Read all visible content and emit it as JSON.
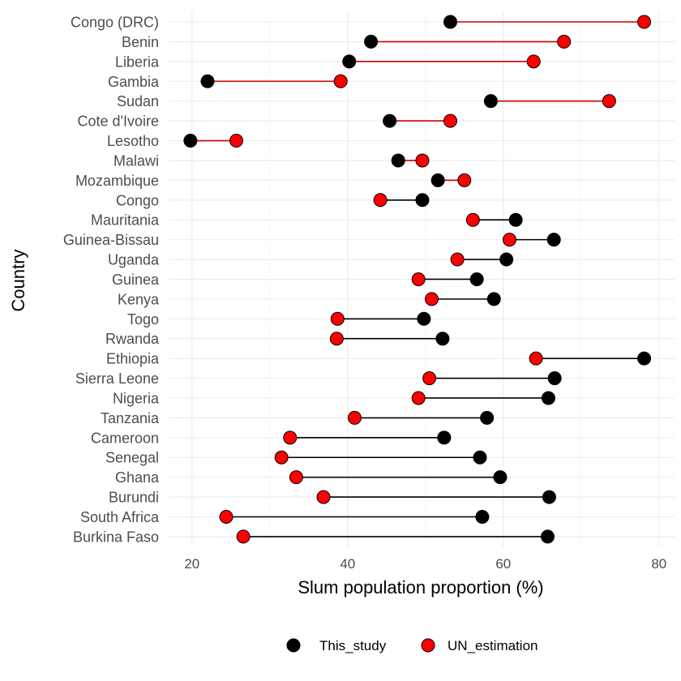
{
  "chart_data": {
    "type": "dumbbell",
    "xlabel": "Slum population proportion (%)",
    "ylabel": "Country",
    "xlim": [
      17,
      82
    ],
    "xticks": [
      20,
      40,
      60,
      80
    ],
    "grid": true,
    "legend_position": "bottom",
    "colors": {
      "This_study": "#000000",
      "UN_estimation": "#ff0000",
      "segment_red": "#cc0000",
      "segment_black": "#000000"
    },
    "categories": [
      "Congo (DRC)",
      "Benin",
      "Liberia",
      "Gambia",
      "Sudan",
      "Cote d'Ivoire",
      "Lesotho",
      "Malawi",
      "Mozambique",
      "Congo",
      "Mauritania",
      "Guinea-Bissau",
      "Uganda",
      "Guinea",
      "Kenya",
      "Togo",
      "Rwanda",
      "Ethiopia",
      "Sierra Leone",
      "Nigeria",
      "Tanzania",
      "Cameroon",
      "Senegal",
      "Ghana",
      "Burundi",
      "South Africa",
      "Burkina Faso"
    ],
    "series": [
      {
        "name": "This_study",
        "values": [
          53.2,
          43,
          40.2,
          22,
          58.4,
          45.4,
          19.8,
          46.5,
          51.6,
          49.6,
          61.6,
          66.5,
          60.4,
          56.6,
          58.8,
          49.8,
          52.2,
          78.1,
          66.6,
          65.8,
          57.9,
          52.4,
          57,
          59.6,
          65.9,
          57.3,
          65.7
        ]
      },
      {
        "name": "UN_estimation",
        "values": [
          78.1,
          67.8,
          63.9,
          39.1,
          73.6,
          53.2,
          25.7,
          49.6,
          55,
          44.2,
          56.1,
          60.8,
          54.1,
          49.1,
          50.8,
          38.7,
          38.6,
          64.2,
          50.5,
          49.1,
          40.9,
          32.6,
          31.5,
          33.4,
          36.9,
          24.4,
          26.6
        ]
      }
    ]
  }
}
